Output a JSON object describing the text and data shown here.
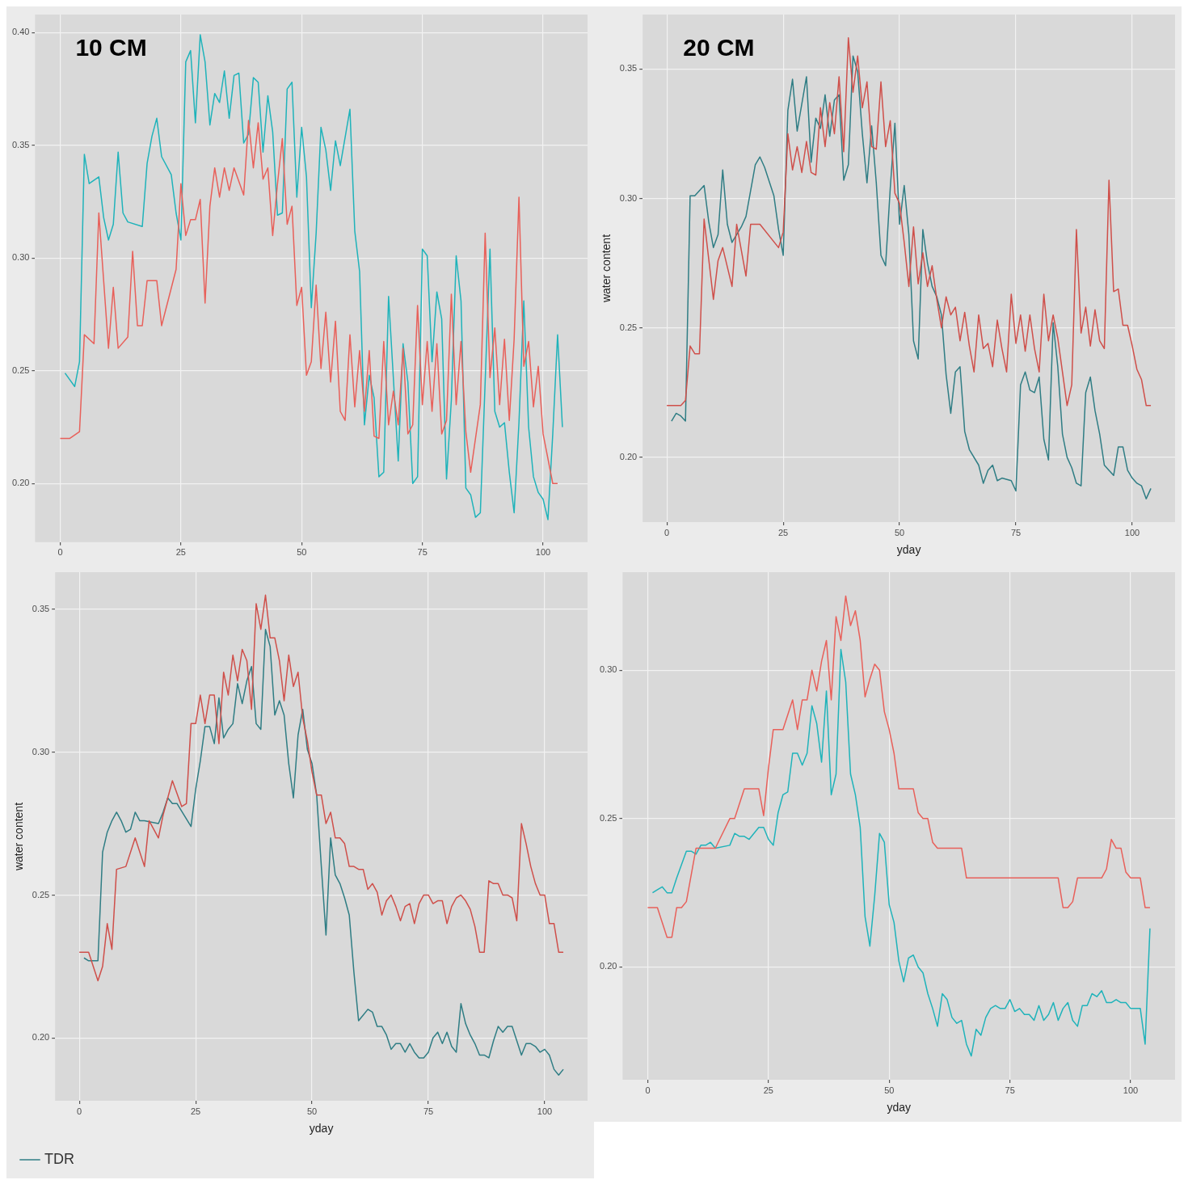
{
  "chart_data": [
    {
      "type": "line",
      "title": "10 CM",
      "xlim": [
        -5.2,
        109.2
      ],
      "ylim": [
        0.174,
        0.408
      ],
      "xticks": [
        0,
        25,
        50,
        75,
        100
      ],
      "yticks": [
        {
          "value": 0.2,
          "label": "0.20"
        },
        {
          "value": 0.25,
          "label": "0.25"
        },
        {
          "value": 0.3,
          "label": "0.30"
        },
        {
          "value": 0.35,
          "label": "0.35"
        },
        {
          "value": 0.4,
          "label": "0.40"
        }
      ],
      "grid": true,
      "legend": false,
      "series": [
        {
          "color": "#e8605a",
          "x": [
            0,
            2,
            4,
            5,
            7,
            8,
            10,
            11,
            12,
            14,
            15,
            16,
            17,
            18,
            20,
            21,
            24,
            25,
            26,
            27,
            28,
            29,
            30,
            31,
            32,
            33,
            34,
            35,
            36,
            38,
            39,
            40,
            41,
            42,
            43,
            44,
            45,
            46,
            47,
            48,
            49,
            50,
            51,
            52,
            53,
            54,
            55,
            56,
            57,
            58,
            59,
            60,
            61,
            62,
            63,
            64,
            65,
            66,
            67,
            68,
            69,
            70,
            71,
            72,
            73,
            74,
            75,
            76,
            77,
            78,
            79,
            80,
            81,
            82,
            83,
            84,
            85,
            87,
            88,
            89,
            90,
            91,
            92,
            93,
            94,
            95,
            96,
            97,
            98,
            99,
            100,
            102,
            103
          ],
          "values": [
            0.22,
            0.22,
            0.223,
            0.266,
            0.262,
            0.32,
            0.26,
            0.287,
            0.26,
            0.265,
            0.303,
            0.27,
            0.27,
            0.29,
            0.29,
            0.27,
            0.295,
            0.333,
            0.31,
            0.317,
            0.317,
            0.326,
            0.28,
            0.323,
            0.34,
            0.327,
            0.34,
            0.33,
            0.34,
            0.328,
            0.361,
            0.34,
            0.36,
            0.335,
            0.34,
            0.31,
            0.333,
            0.353,
            0.315,
            0.323,
            0.279,
            0.287,
            0.248,
            0.254,
            0.288,
            0.251,
            0.276,
            0.245,
            0.272,
            0.232,
            0.228,
            0.266,
            0.234,
            0.259,
            0.232,
            0.259,
            0.221,
            0.22,
            0.263,
            0.226,
            0.241,
            0.226,
            0.26,
            0.222,
            0.226,
            0.279,
            0.235,
            0.263,
            0.232,
            0.262,
            0.222,
            0.228,
            0.284,
            0.235,
            0.263,
            0.223,
            0.205,
            0.235,
            0.311,
            0.247,
            0.269,
            0.235,
            0.264,
            0.228,
            0.264,
            0.327,
            0.252,
            0.263,
            0.234,
            0.252,
            0.222,
            0.2,
            0.2
          ]
        },
        {
          "color": "#1fb3ba",
          "x": [
            1,
            3,
            4,
            5,
            6,
            8,
            9,
            10,
            11,
            12,
            13,
            14,
            17,
            18,
            19,
            20,
            21,
            23,
            24,
            25,
            26,
            27,
            28,
            29,
            30,
            31,
            32,
            33,
            34,
            35,
            36,
            37,
            38,
            39,
            40,
            41,
            42,
            43,
            44,
            45,
            46,
            47,
            48,
            49,
            50,
            51,
            52,
            53,
            54,
            55,
            56,
            57,
            58,
            60,
            61,
            62,
            63,
            64,
            65,
            66,
            67,
            68,
            70,
            71,
            72,
            73,
            74,
            75,
            76,
            77,
            78,
            79,
            80,
            81,
            82,
            83,
            84,
            85,
            86,
            87,
            88,
            89,
            90,
            91,
            92,
            93,
            94,
            95,
            96,
            97,
            98,
            99,
            100,
            101,
            102,
            103,
            104
          ],
          "values": [
            0.249,
            0.243,
            0.254,
            0.346,
            0.333,
            0.336,
            0.318,
            0.308,
            0.315,
            0.347,
            0.32,
            0.316,
            0.314,
            0.342,
            0.354,
            0.362,
            0.345,
            0.337,
            0.32,
            0.308,
            0.387,
            0.392,
            0.36,
            0.399,
            0.387,
            0.359,
            0.373,
            0.369,
            0.383,
            0.362,
            0.381,
            0.382,
            0.351,
            0.355,
            0.38,
            0.378,
            0.347,
            0.372,
            0.356,
            0.319,
            0.32,
            0.375,
            0.378,
            0.327,
            0.358,
            0.336,
            0.278,
            0.311,
            0.358,
            0.348,
            0.33,
            0.352,
            0.341,
            0.366,
            0.312,
            0.294,
            0.226,
            0.248,
            0.238,
            0.203,
            0.205,
            0.283,
            0.21,
            0.262,
            0.245,
            0.2,
            0.203,
            0.304,
            0.301,
            0.254,
            0.285,
            0.273,
            0.202,
            0.237,
            0.301,
            0.281,
            0.198,
            0.195,
            0.185,
            0.187,
            0.245,
            0.304,
            0.232,
            0.225,
            0.227,
            0.205,
            0.187,
            0.227,
            0.281,
            0.225,
            0.203,
            0.196,
            0.193,
            0.184,
            0.222,
            0.266,
            0.225
          ]
        }
      ]
    },
    {
      "type": "line",
      "title": "20 CM",
      "xlabel": "yday",
      "ylabel": "water content",
      "xlim": [
        -5.2,
        109.2
      ],
      "ylim": [
        0.175,
        0.371
      ],
      "xticks": [
        0,
        25,
        50,
        75,
        100
      ],
      "yticks": [
        {
          "value": 0.2,
          "label": "0.20"
        },
        {
          "value": 0.25,
          "label": "0.25"
        },
        {
          "value": 0.3,
          "label": "0.30"
        },
        {
          "value": 0.35,
          "label": "0.35"
        }
      ],
      "grid": true,
      "legend": false,
      "series": [
        {
          "color": "#cf4f4a",
          "x": [
            0,
            3,
            4,
            5,
            6,
            7,
            8,
            10,
            11,
            12,
            14,
            15,
            17,
            18,
            20,
            24,
            25,
            26,
            27,
            28,
            29,
            30,
            31,
            32,
            33,
            34,
            35,
            36,
            37,
            38,
            39,
            40,
            41,
            42,
            43,
            44,
            45,
            46,
            47,
            48,
            49,
            50,
            51,
            52,
            53,
            54,
            55,
            56,
            57,
            58,
            59,
            60,
            61,
            62,
            63,
            64,
            65,
            66,
            67,
            68,
            69,
            70,
            71,
            72,
            73,
            74,
            75,
            76,
            77,
            78,
            79,
            80,
            81,
            82,
            83,
            84,
            85,
            86,
            87,
            88,
            89,
            90,
            91,
            92,
            93,
            94,
            95,
            96,
            97,
            98,
            99,
            100,
            101,
            102,
            103,
            104
          ],
          "values": [
            0.22,
            0.22,
            0.222,
            0.243,
            0.24,
            0.24,
            0.292,
            0.261,
            0.276,
            0.281,
            0.266,
            0.29,
            0.27,
            0.29,
            0.29,
            0.281,
            0.287,
            0.325,
            0.311,
            0.32,
            0.31,
            0.322,
            0.31,
            0.309,
            0.335,
            0.32,
            0.337,
            0.325,
            0.347,
            0.318,
            0.362,
            0.341,
            0.355,
            0.335,
            0.345,
            0.32,
            0.319,
            0.345,
            0.32,
            0.33,
            0.302,
            0.298,
            0.283,
            0.266,
            0.289,
            0.267,
            0.279,
            0.266,
            0.274,
            0.261,
            0.25,
            0.262,
            0.255,
            0.258,
            0.245,
            0.256,
            0.243,
            0.233,
            0.255,
            0.242,
            0.244,
            0.235,
            0.253,
            0.242,
            0.233,
            0.263,
            0.244,
            0.255,
            0.241,
            0.255,
            0.242,
            0.233,
            0.263,
            0.245,
            0.255,
            0.246,
            0.233,
            0.22,
            0.228,
            0.288,
            0.248,
            0.258,
            0.243,
            0.257,
            0.245,
            0.242,
            0.307,
            0.264,
            0.265,
            0.251,
            0.251,
            0.243,
            0.234,
            0.23,
            0.22,
            0.22
          ]
        },
        {
          "color": "#2f7d84",
          "x": [
            1,
            2,
            3,
            4,
            5,
            6,
            8,
            9,
            10,
            11,
            12,
            13,
            14,
            16,
            17,
            19,
            20,
            21,
            23,
            24,
            25,
            26,
            27,
            28,
            30,
            31,
            32,
            33,
            34,
            35,
            36,
            37,
            38,
            39,
            40,
            41,
            42,
            43,
            44,
            45,
            46,
            47,
            48,
            49,
            50,
            51,
            52,
            53,
            54,
            55,
            56,
            57,
            58,
            59,
            60,
            61,
            62,
            63,
            64,
            65,
            67,
            68,
            69,
            70,
            71,
            72,
            74,
            75,
            76,
            77,
            78,
            79,
            80,
            81,
            82,
            83,
            84,
            85,
            86,
            87,
            88,
            89,
            90,
            91,
            92,
            93,
            94,
            95,
            96,
            97,
            98,
            99,
            100,
            101,
            102,
            103,
            104
          ],
          "values": [
            0.214,
            0.217,
            0.216,
            0.214,
            0.301,
            0.301,
            0.305,
            0.291,
            0.281,
            0.286,
            0.311,
            0.29,
            0.283,
            0.289,
            0.293,
            0.313,
            0.316,
            0.312,
            0.301,
            0.288,
            0.278,
            0.334,
            0.346,
            0.326,
            0.347,
            0.314,
            0.331,
            0.327,
            0.34,
            0.324,
            0.338,
            0.34,
            0.307,
            0.313,
            0.355,
            0.349,
            0.325,
            0.306,
            0.328,
            0.306,
            0.278,
            0.274,
            0.304,
            0.329,
            0.29,
            0.305,
            0.286,
            0.245,
            0.238,
            0.288,
            0.275,
            0.266,
            0.262,
            0.255,
            0.232,
            0.217,
            0.233,
            0.235,
            0.21,
            0.203,
            0.197,
            0.19,
            0.195,
            0.197,
            0.191,
            0.192,
            0.191,
            0.187,
            0.228,
            0.233,
            0.226,
            0.225,
            0.231,
            0.207,
            0.199,
            0.252,
            0.235,
            0.209,
            0.2,
            0.196,
            0.19,
            0.189,
            0.225,
            0.231,
            0.218,
            0.209,
            0.197,
            0.195,
            0.193,
            0.204,
            0.204,
            0.195,
            0.192,
            0.19,
            0.189,
            0.184,
            0.188
          ]
        }
      ]
    },
    {
      "type": "line",
      "xlabel": "yday",
      "ylabel": "water content",
      "xlim": [
        -5.2,
        109.2
      ],
      "ylim": [
        0.178,
        0.363
      ],
      "xticks": [
        0,
        25,
        50,
        75,
        100
      ],
      "yticks": [
        {
          "value": 0.2,
          "label": "0.20"
        },
        {
          "value": 0.25,
          "label": "0.25"
        },
        {
          "value": 0.3,
          "label": "0.30"
        },
        {
          "value": 0.35,
          "label": "0.35"
        }
      ],
      "grid": true,
      "legend": "bottom left",
      "series": [
        {
          "color": "#cf4f4a",
          "x": [
            0,
            2,
            4,
            5,
            6,
            7,
            8,
            10,
            12,
            14,
            15,
            17,
            18,
            20,
            22,
            23,
            24,
            25,
            26,
            27,
            28,
            29,
            30,
            31,
            32,
            33,
            34,
            35,
            36,
            37,
            38,
            39,
            40,
            41,
            42,
            43,
            44,
            45,
            46,
            47,
            48,
            49,
            50,
            51,
            52,
            53,
            54,
            55,
            56,
            57,
            58,
            59,
            60,
            61,
            62,
            63,
            64,
            65,
            66,
            67,
            68,
            69,
            70,
            71,
            72,
            73,
            74,
            75,
            76,
            77,
            78,
            79,
            80,
            81,
            82,
            83,
            84,
            85,
            86,
            87,
            88,
            89,
            90,
            91,
            92,
            93,
            94,
            95,
            96,
            97,
            98,
            99,
            100,
            101,
            102,
            103,
            104
          ],
          "values": [
            0.23,
            0.23,
            0.22,
            0.225,
            0.24,
            0.231,
            0.259,
            0.26,
            0.27,
            0.26,
            0.276,
            0.27,
            0.278,
            0.29,
            0.281,
            0.282,
            0.31,
            0.31,
            0.32,
            0.31,
            0.32,
            0.32,
            0.303,
            0.328,
            0.32,
            0.334,
            0.325,
            0.336,
            0.332,
            0.315,
            0.352,
            0.343,
            0.355,
            0.34,
            0.34,
            0.332,
            0.318,
            0.334,
            0.323,
            0.328,
            0.312,
            0.304,
            0.293,
            0.285,
            0.285,
            0.275,
            0.279,
            0.27,
            0.27,
            0.268,
            0.26,
            0.26,
            0.259,
            0.259,
            0.252,
            0.254,
            0.251,
            0.243,
            0.248,
            0.25,
            0.246,
            0.241,
            0.246,
            0.247,
            0.24,
            0.247,
            0.25,
            0.25,
            0.247,
            0.248,
            0.248,
            0.24,
            0.246,
            0.249,
            0.25,
            0.248,
            0.245,
            0.239,
            0.23,
            0.23,
            0.255,
            0.254,
            0.254,
            0.25,
            0.25,
            0.249,
            0.241,
            0.275,
            0.268,
            0.26,
            0.254,
            0.25,
            0.25,
            0.24,
            0.24,
            0.23,
            0.23
          ]
        },
        {
          "name": "TDR",
          "color": "#2f7d84",
          "x": [
            1,
            2,
            3,
            4,
            5,
            6,
            7,
            8,
            9,
            10,
            11,
            12,
            13,
            14,
            17,
            18,
            19,
            20,
            21,
            24,
            25,
            26,
            27,
            28,
            29,
            30,
            31,
            32,
            33,
            34,
            35,
            36,
            37,
            38,
            39,
            40,
            41,
            42,
            43,
            44,
            45,
            46,
            47,
            48,
            49,
            50,
            51,
            52,
            53,
            54,
            55,
            56,
            57,
            58,
            59,
            60,
            61,
            62,
            63,
            64,
            65,
            66,
            67,
            68,
            69,
            70,
            71,
            72,
            73,
            74,
            75,
            76,
            77,
            78,
            79,
            80,
            81,
            82,
            83,
            84,
            85,
            86,
            87,
            88,
            89,
            90,
            91,
            92,
            93,
            94,
            95,
            96,
            97,
            98,
            99,
            100,
            101,
            102,
            103,
            104
          ],
          "values": [
            0.228,
            0.227,
            0.227,
            0.227,
            0.265,
            0.272,
            0.276,
            0.279,
            0.276,
            0.272,
            0.273,
            0.279,
            0.276,
            0.276,
            0.275,
            0.279,
            0.284,
            0.282,
            0.282,
            0.274,
            0.287,
            0.297,
            0.309,
            0.309,
            0.303,
            0.319,
            0.305,
            0.308,
            0.31,
            0.324,
            0.317,
            0.325,
            0.33,
            0.31,
            0.308,
            0.343,
            0.337,
            0.313,
            0.318,
            0.313,
            0.296,
            0.284,
            0.306,
            0.315,
            0.301,
            0.296,
            0.285,
            0.26,
            0.236,
            0.27,
            0.257,
            0.254,
            0.249,
            0.243,
            0.223,
            0.206,
            0.208,
            0.21,
            0.209,
            0.204,
            0.204,
            0.201,
            0.196,
            0.198,
            0.198,
            0.195,
            0.198,
            0.195,
            0.193,
            0.193,
            0.195,
            0.2,
            0.202,
            0.198,
            0.202,
            0.197,
            0.195,
            0.212,
            0.205,
            0.201,
            0.198,
            0.194,
            0.194,
            0.193,
            0.199,
            0.204,
            0.202,
            0.204,
            0.204,
            0.199,
            0.194,
            0.198,
            0.198,
            0.197,
            0.195,
            0.196,
            0.194,
            0.189,
            0.187,
            0.189
          ]
        }
      ]
    },
    {
      "type": "line",
      "xlabel": "yday",
      "xlim": [
        -5.2,
        109.2
      ],
      "ylim": [
        0.162,
        0.333
      ],
      "xticks": [
        0,
        25,
        50,
        75,
        100
      ],
      "yticks": [
        {
          "value": 0.2,
          "label": "0.20"
        },
        {
          "value": 0.25,
          "label": "0.25"
        },
        {
          "value": 0.3,
          "label": "0.30"
        }
      ],
      "grid": true,
      "legend": false,
      "series": [
        {
          "color": "#e8605a",
          "x": [
            0,
            2,
            4,
            5,
            6,
            7,
            8,
            10,
            14,
            17,
            18,
            20,
            23,
            24,
            25,
            26,
            28,
            30,
            31,
            32,
            33,
            34,
            35,
            36,
            37,
            38,
            39,
            40,
            41,
            42,
            43,
            44,
            45,
            46,
            47,
            48,
            49,
            50,
            51,
            52,
            55,
            56,
            57,
            58,
            59,
            60,
            65,
            66,
            85,
            86,
            87,
            88,
            89,
            94,
            95,
            96,
            97,
            98,
            99,
            100,
            102,
            103,
            104
          ],
          "values": [
            0.22,
            0.22,
            0.21,
            0.21,
            0.22,
            0.22,
            0.222,
            0.24,
            0.24,
            0.25,
            0.25,
            0.26,
            0.26,
            0.251,
            0.267,
            0.28,
            0.28,
            0.29,
            0.28,
            0.29,
            0.29,
            0.3,
            0.293,
            0.303,
            0.31,
            0.29,
            0.318,
            0.31,
            0.325,
            0.315,
            0.32,
            0.31,
            0.291,
            0.297,
            0.302,
            0.3,
            0.286,
            0.28,
            0.272,
            0.26,
            0.26,
            0.252,
            0.25,
            0.25,
            0.242,
            0.24,
            0.24,
            0.23,
            0.23,
            0.22,
            0.22,
            0.222,
            0.23,
            0.23,
            0.233,
            0.243,
            0.24,
            0.24,
            0.232,
            0.23,
            0.23,
            0.22,
            0.22
          ]
        },
        {
          "color": "#1fb3ba",
          "x": [
            1,
            2,
            3,
            4,
            5,
            6,
            8,
            9,
            10,
            11,
            12,
            13,
            14,
            17,
            18,
            19,
            20,
            21,
            23,
            24,
            25,
            26,
            27,
            28,
            29,
            30,
            31,
            32,
            33,
            34,
            35,
            36,
            37,
            38,
            39,
            40,
            41,
            42,
            43,
            44,
            45,
            46,
            47,
            48,
            49,
            50,
            51,
            52,
            53,
            54,
            55,
            56,
            57,
            58,
            59,
            60,
            61,
            62,
            63,
            64,
            65,
            66,
            67,
            68,
            69,
            70,
            71,
            72,
            73,
            74,
            75,
            76,
            77,
            78,
            79,
            80,
            81,
            82,
            83,
            84,
            85,
            86,
            87,
            88,
            89,
            90,
            91,
            92,
            93,
            94,
            95,
            96,
            97,
            98,
            99,
            100,
            101,
            102,
            103,
            104
          ],
          "values": [
            0.225,
            0.226,
            0.227,
            0.225,
            0.225,
            0.23,
            0.239,
            0.239,
            0.238,
            0.241,
            0.241,
            0.242,
            0.24,
            0.241,
            0.245,
            0.244,
            0.244,
            0.243,
            0.247,
            0.247,
            0.243,
            0.241,
            0.252,
            0.258,
            0.259,
            0.272,
            0.272,
            0.268,
            0.272,
            0.288,
            0.282,
            0.269,
            0.293,
            0.258,
            0.265,
            0.307,
            0.296,
            0.265,
            0.258,
            0.247,
            0.217,
            0.207,
            0.224,
            0.245,
            0.242,
            0.221,
            0.215,
            0.202,
            0.195,
            0.203,
            0.204,
            0.2,
            0.198,
            0.191,
            0.186,
            0.18,
            0.191,
            0.189,
            0.183,
            0.181,
            0.182,
            0.174,
            0.17,
            0.179,
            0.177,
            0.183,
            0.186,
            0.187,
            0.186,
            0.186,
            0.189,
            0.185,
            0.186,
            0.184,
            0.184,
            0.182,
            0.187,
            0.182,
            0.184,
            0.188,
            0.182,
            0.186,
            0.188,
            0.182,
            0.18,
            0.187,
            0.187,
            0.191,
            0.19,
            0.192,
            0.188,
            0.188,
            0.189,
            0.188,
            0.188,
            0.186,
            0.186,
            0.186,
            0.174,
            0.213
          ]
        }
      ]
    }
  ]
}
